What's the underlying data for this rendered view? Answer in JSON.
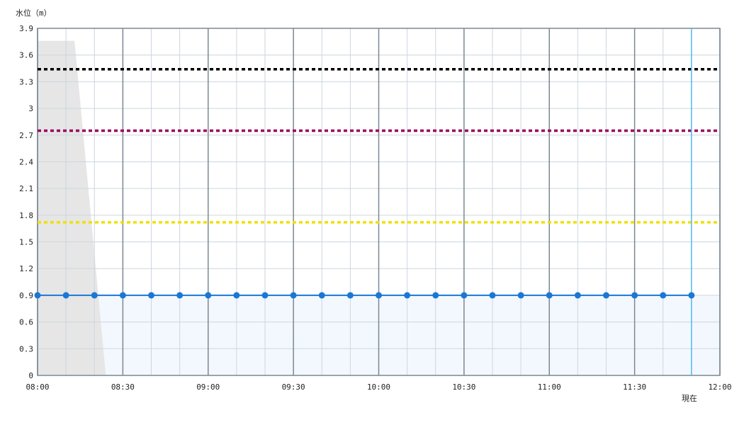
{
  "chart_data": {
    "type": "line",
    "ylabel": "水位（m）",
    "ylim": [
      0,
      3.9
    ],
    "yticks": [
      "0",
      "0.3",
      "0.6",
      "0.9",
      "1.2",
      "1.5",
      "1.8",
      "2.1",
      "2.4",
      "2.7",
      "3",
      "3.3",
      "3.6",
      "3.9"
    ],
    "xlim": [
      "08:00",
      "12:00"
    ],
    "xticks": [
      "08:00",
      "08:30",
      "09:00",
      "09:30",
      "10:00",
      "10:30",
      "11:00",
      "11:30",
      "12:00"
    ],
    "grid": true,
    "now_label": "現在",
    "now_time": "11:50",
    "series": [
      {
        "x": [
          "08:00",
          "08:10",
          "08:20",
          "08:30",
          "08:40",
          "08:50",
          "09:00",
          "09:10",
          "09:20",
          "09:30",
          "09:40",
          "09:50",
          "10:00",
          "10:10",
          "10:20",
          "10:30",
          "10:40",
          "10:50",
          "11:00",
          "11:10",
          "11:20",
          "11:30",
          "11:40",
          "11:50"
        ],
        "values": [
          0.9,
          0.9,
          0.9,
          0.9,
          0.9,
          0.9,
          0.9,
          0.9,
          0.9,
          0.9,
          0.9,
          0.9,
          0.9,
          0.9,
          0.9,
          0.9,
          0.9,
          0.9,
          0.9,
          0.9,
          0.9,
          0.9,
          0.9,
          0.9
        ],
        "color": "#1a78d4"
      }
    ],
    "threshold_lines": [
      {
        "value": 3.44,
        "color": "#000000"
      },
      {
        "value": 2.75,
        "color": "#99005a"
      },
      {
        "value": 1.72,
        "color": "#f0e000"
      }
    ],
    "gray_area": {
      "points": [
        [
          "08:00",
          3.76
        ],
        [
          "08:13",
          3.76
        ],
        [
          "08:24",
          0
        ]
      ],
      "color": "#e6e6e6"
    },
    "colors": {
      "fill": "#f3f8fe",
      "now_line": "#4fb8f0",
      "major_grid": "#7a8893",
      "minor_grid": "#cdd6de"
    }
  }
}
